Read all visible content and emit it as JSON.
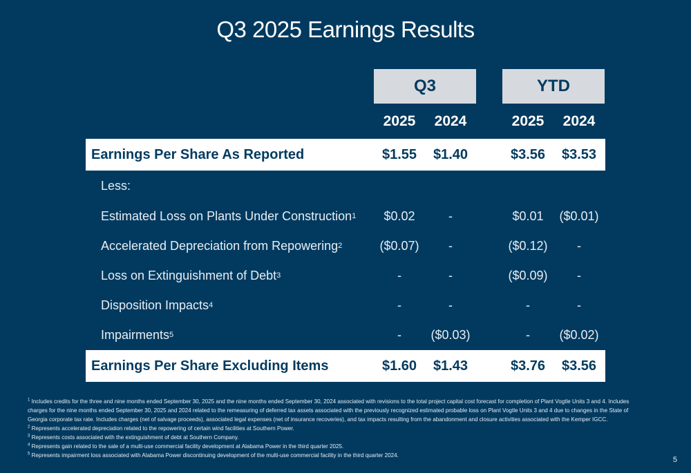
{
  "title": "Q3 2025 Earnings Results",
  "groups": {
    "q3": "Q3",
    "ytd": "YTD"
  },
  "years": [
    "2025",
    "2024",
    "2025",
    "2024"
  ],
  "eps_reported": {
    "label": "Earnings Per Share As Reported",
    "values": [
      "$1.55",
      "$1.40",
      "$3.56",
      "$3.53"
    ]
  },
  "less_label": "Less:",
  "items": [
    {
      "label": "Estimated Loss on Plants Under Construction",
      "note": "1",
      "values": [
        "$0.02",
        "-",
        "$0.01",
        "($0.01)"
      ]
    },
    {
      "label": "Accelerated Depreciation from Repowering",
      "note": "2",
      "values": [
        "($0.07)",
        "-",
        "($0.12)",
        "-"
      ]
    },
    {
      "label": "Loss on Extinguishment of Debt",
      "note": "3",
      "values": [
        "-",
        "-",
        "($0.09)",
        "-"
      ]
    },
    {
      "label": "Disposition Impacts",
      "note": "4",
      "values": [
        "-",
        "-",
        "-",
        "-"
      ]
    },
    {
      "label": "Impairments",
      "note": "5",
      "values": [
        "-",
        "($0.03)",
        "-",
        "($0.02)"
      ]
    }
  ],
  "eps_excluding": {
    "label": "Earnings Per Share Excluding Items",
    "values": [
      "$1.60",
      "$1.43",
      "$3.76",
      "$3.56"
    ]
  },
  "footnotes": [
    {
      "num": "1",
      "text": "Includes credits for the three and nine months ended September 30, 2025 and the nine months ended September 30, 2024 associated with revisions to the total project capital cost forecast for completion of Plant Vogtle Units 3 and 4. Includes charges for the nine months ended September 30, 2025 and 2024 related to the remeasuring of deferred tax assets associated with the previously recognized estimated probable loss on Plant Vogtle Units 3 and 4 due to changes in the State of Georgia corporate tax rate. Includes charges (net of salvage proceeds), associated legal expenses (net of insurance recoveries), and tax impacts resulting from the abandonment and closure activities associated with the Kemper IGCC."
    },
    {
      "num": "2",
      "text": "Represents accelerated depreciation related to the repowering of certain wind facilities at Southern Power."
    },
    {
      "num": "3",
      "text": "Represents costs associated with the extinguishment of debt at Southern Company."
    },
    {
      "num": "4",
      "text": "Represents gain related to the sale of a multi-use commercial facility development at Alabama Power in the third quarter 2025."
    },
    {
      "num": "5",
      "text": "Represents impairment loss associated with Alabama Power discontinuing development of the multi-use commercial facility in the third quarter 2024."
    }
  ],
  "page_number": "5"
}
